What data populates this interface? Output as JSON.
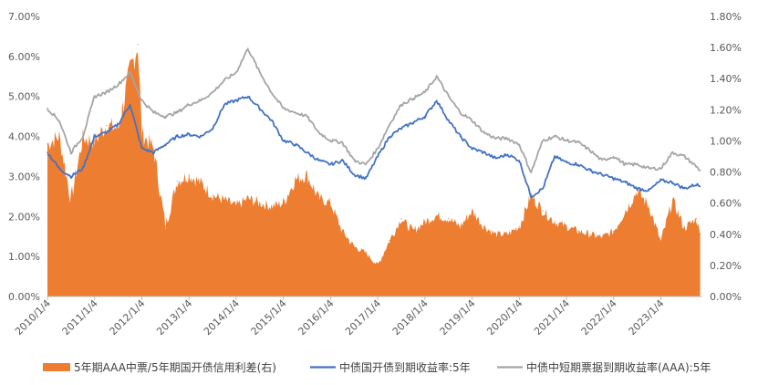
{
  "chart_data": {
    "type": "line",
    "title": "",
    "xlabel": "",
    "ylabel": "",
    "left_axis": {
      "ylim": [
        0,
        7.0
      ],
      "ticks": [
        0,
        1,
        2,
        3,
        4,
        5,
        6,
        7
      ],
      "tick_labels": [
        "0.00%",
        "1.00%",
        "2.00%",
        "3.00%",
        "4.00%",
        "5.00%",
        "6.00%",
        "7.00%"
      ]
    },
    "right_axis": {
      "ylim": [
        0,
        1.8
      ],
      "ticks": [
        0,
        0.2,
        0.4,
        0.6,
        0.8,
        1.0,
        1.2,
        1.4,
        1.6,
        1.8
      ],
      "tick_labels": [
        "0.00%",
        "0.20%",
        "0.40%",
        "0.60%",
        "0.80%",
        "1.00%",
        "1.20%",
        "1.40%",
        "1.60%",
        "1.80%"
      ]
    },
    "x_axis": {
      "range_years": [
        2010.0,
        2023.88
      ],
      "tick_years": [
        2010,
        2011,
        2012,
        2013,
        2014,
        2015,
        2016,
        2017,
        2018,
        2019,
        2020,
        2021,
        2022,
        2023
      ],
      "tick_labels": [
        "2010/1/4",
        "2011/1/4",
        "2012/1/4",
        "2013/1/4",
        "2014/1/4",
        "2015/1/4",
        "2016/1/4",
        "2017/1/4",
        "2018/1/4",
        "2019/1/4",
        "2020/1/4",
        "2021/1/4",
        "2022/1/4",
        "2023/1/4"
      ]
    },
    "grid": false,
    "legend_position": "bottom",
    "series": [
      {
        "name": "5年期AAA中票/5年期国开债信用利差(右)",
        "kind": "area",
        "axis": "right",
        "color": "#ED7D31",
        "x": [
          "2010-01",
          "2010-04",
          "2010-07",
          "2010-10",
          "2011-01",
          "2011-04",
          "2011-07",
          "2011-10",
          "2011-12",
          "2012-01",
          "2012-04",
          "2012-07",
          "2012-10",
          "2013-01",
          "2013-04",
          "2013-07",
          "2013-10",
          "2014-01",
          "2014-04",
          "2014-07",
          "2014-10",
          "2015-01",
          "2015-04",
          "2015-07",
          "2015-10",
          "2016-01",
          "2016-04",
          "2016-07",
          "2016-10",
          "2017-01",
          "2017-04",
          "2017-07",
          "2017-10",
          "2018-01",
          "2018-04",
          "2018-07",
          "2018-10",
          "2019-01",
          "2019-04",
          "2019-07",
          "2019-10",
          "2020-01",
          "2020-04",
          "2020-07",
          "2020-10",
          "2021-01",
          "2021-04",
          "2021-07",
          "2021-10",
          "2022-01",
          "2022-04",
          "2022-07",
          "2022-10",
          "2023-01",
          "2023-04",
          "2023-07",
          "2023-10",
          "2023-11"
        ],
        "values": [
          0.98,
          1.03,
          0.62,
          1.02,
          1.0,
          1.1,
          1.08,
          1.45,
          1.62,
          1.05,
          0.95,
          0.45,
          0.74,
          0.78,
          0.73,
          0.65,
          0.62,
          0.58,
          0.63,
          0.6,
          0.58,
          0.6,
          0.75,
          0.78,
          0.63,
          0.6,
          0.42,
          0.32,
          0.28,
          0.2,
          0.36,
          0.5,
          0.42,
          0.48,
          0.52,
          0.5,
          0.45,
          0.55,
          0.45,
          0.4,
          0.4,
          0.45,
          0.65,
          0.55,
          0.48,
          0.45,
          0.42,
          0.4,
          0.38,
          0.42,
          0.55,
          0.68,
          0.58,
          0.35,
          0.62,
          0.44,
          0.5,
          0.4
        ]
      },
      {
        "name": "中债国开债到期收益率:5年",
        "kind": "line",
        "axis": "left",
        "color": "#4472C4",
        "x": [
          "2010-01",
          "2010-04",
          "2010-07",
          "2010-10",
          "2011-01",
          "2011-04",
          "2011-07",
          "2011-10",
          "2012-01",
          "2012-04",
          "2012-07",
          "2012-10",
          "2013-01",
          "2013-04",
          "2013-07",
          "2013-10",
          "2014-01",
          "2014-04",
          "2014-07",
          "2014-10",
          "2015-01",
          "2015-04",
          "2015-07",
          "2015-10",
          "2016-01",
          "2016-04",
          "2016-07",
          "2016-10",
          "2017-01",
          "2017-04",
          "2017-07",
          "2017-10",
          "2018-01",
          "2018-04",
          "2018-07",
          "2018-10",
          "2019-01",
          "2019-04",
          "2019-07",
          "2019-10",
          "2020-01",
          "2020-04",
          "2020-07",
          "2020-10",
          "2021-01",
          "2021-04",
          "2021-07",
          "2021-10",
          "2022-01",
          "2022-04",
          "2022-07",
          "2022-10",
          "2023-01",
          "2023-04",
          "2023-07",
          "2023-10",
          "2023-11"
        ],
        "values": [
          3.6,
          3.2,
          3.0,
          3.2,
          4.0,
          4.1,
          4.3,
          4.8,
          3.7,
          3.6,
          3.8,
          4.0,
          4.05,
          4.0,
          4.2,
          4.8,
          4.9,
          5.0,
          4.7,
          4.4,
          3.9,
          3.8,
          3.6,
          3.4,
          3.3,
          3.4,
          3.05,
          2.95,
          3.5,
          4.0,
          4.2,
          4.35,
          4.5,
          4.9,
          4.4,
          4.0,
          3.7,
          3.6,
          3.45,
          3.55,
          3.4,
          2.5,
          2.7,
          3.5,
          3.35,
          3.3,
          3.15,
          3.05,
          2.95,
          2.85,
          2.7,
          2.65,
          2.9,
          2.85,
          2.7,
          2.8,
          2.75
        ]
      },
      {
        "name": "中债中短期票据到期收益率(AAA):5年",
        "kind": "line",
        "axis": "left",
        "color": "#A5A5A5",
        "x": [
          "2010-01",
          "2010-04",
          "2010-07",
          "2010-10",
          "2011-01",
          "2011-04",
          "2011-07",
          "2011-10",
          "2012-01",
          "2012-04",
          "2012-07",
          "2012-10",
          "2013-01",
          "2013-04",
          "2013-07",
          "2013-10",
          "2014-01",
          "2014-04",
          "2014-07",
          "2014-10",
          "2015-01",
          "2015-04",
          "2015-07",
          "2015-10",
          "2016-01",
          "2016-04",
          "2016-07",
          "2016-10",
          "2017-01",
          "2017-04",
          "2017-07",
          "2017-10",
          "2018-01",
          "2018-04",
          "2018-07",
          "2018-10",
          "2019-01",
          "2019-04",
          "2019-07",
          "2019-10",
          "2020-01",
          "2020-04",
          "2020-07",
          "2020-10",
          "2021-01",
          "2021-04",
          "2021-07",
          "2021-10",
          "2022-01",
          "2022-04",
          "2022-07",
          "2022-10",
          "2023-01",
          "2023-04",
          "2023-07",
          "2023-10",
          "2023-11"
        ],
        "values": [
          4.7,
          4.4,
          3.6,
          4.0,
          5.0,
          5.1,
          5.3,
          5.6,
          4.9,
          4.6,
          4.5,
          4.6,
          4.8,
          4.9,
          5.1,
          5.4,
          5.6,
          6.2,
          5.6,
          5.1,
          4.7,
          4.6,
          4.5,
          4.1,
          3.9,
          3.85,
          3.4,
          3.3,
          3.7,
          4.3,
          4.8,
          4.95,
          5.1,
          5.5,
          5.0,
          4.6,
          4.4,
          4.1,
          3.95,
          3.95,
          3.8,
          3.1,
          3.9,
          4.0,
          3.9,
          3.85,
          3.65,
          3.4,
          3.5,
          3.3,
          3.3,
          3.2,
          3.2,
          3.6,
          3.5,
          3.25,
          3.15
        ]
      }
    ]
  }
}
